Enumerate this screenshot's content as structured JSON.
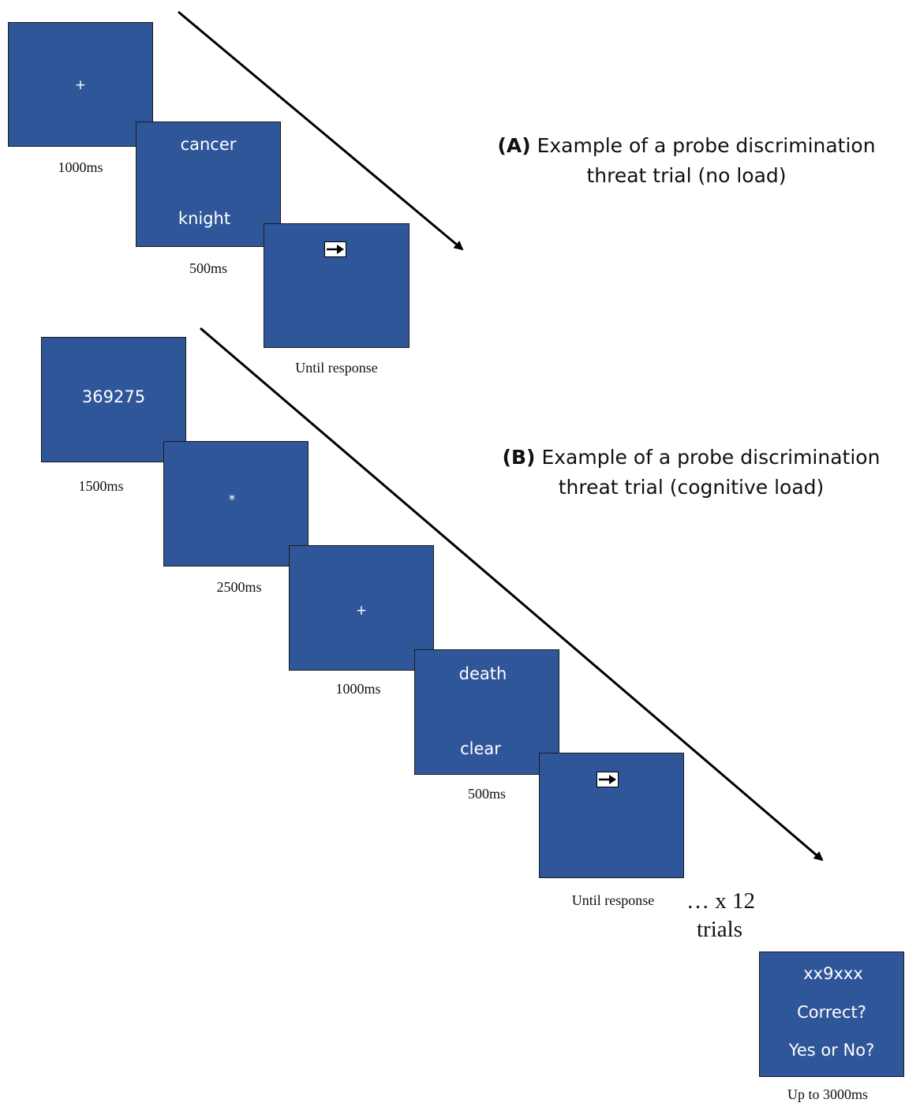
{
  "colors": {
    "screen_fill": "#30569a",
    "screen_text": "#ffffff",
    "arrow": "#000000"
  },
  "panel_a": {
    "title_label": "(A)",
    "title_line1": "Example of a probe discrimination",
    "title_line2": "threat trial (no load)",
    "screens": {
      "fixation": {
        "text": "+",
        "duration": "1000ms"
      },
      "words": {
        "top": "cancer",
        "bottom": "knight",
        "duration": "500ms"
      },
      "probe": {
        "icon": "right-arrow-probe-icon",
        "duration": "Until response"
      }
    }
  },
  "panel_b": {
    "title_label": "(B)",
    "title_line1": "Example of a probe discrimination",
    "title_line2": "threat trial (cognitive load)",
    "screens": {
      "digits": {
        "text": "369275",
        "duration": "1500ms"
      },
      "asterisk": {
        "text": "*",
        "duration": "2500ms"
      },
      "fixation": {
        "text": "+",
        "duration": "1000ms"
      },
      "words": {
        "top": "death",
        "bottom": "clear",
        "duration": "500ms"
      },
      "probe": {
        "icon": "right-arrow-probe-icon",
        "duration": "Until response"
      }
    },
    "repeat_line1": "… x 12",
    "repeat_line2": "trials",
    "recall": {
      "line1": "xx9xxx",
      "line2": "Correct?",
      "line3": "Yes or No?",
      "duration": "Up to 3000ms"
    }
  }
}
